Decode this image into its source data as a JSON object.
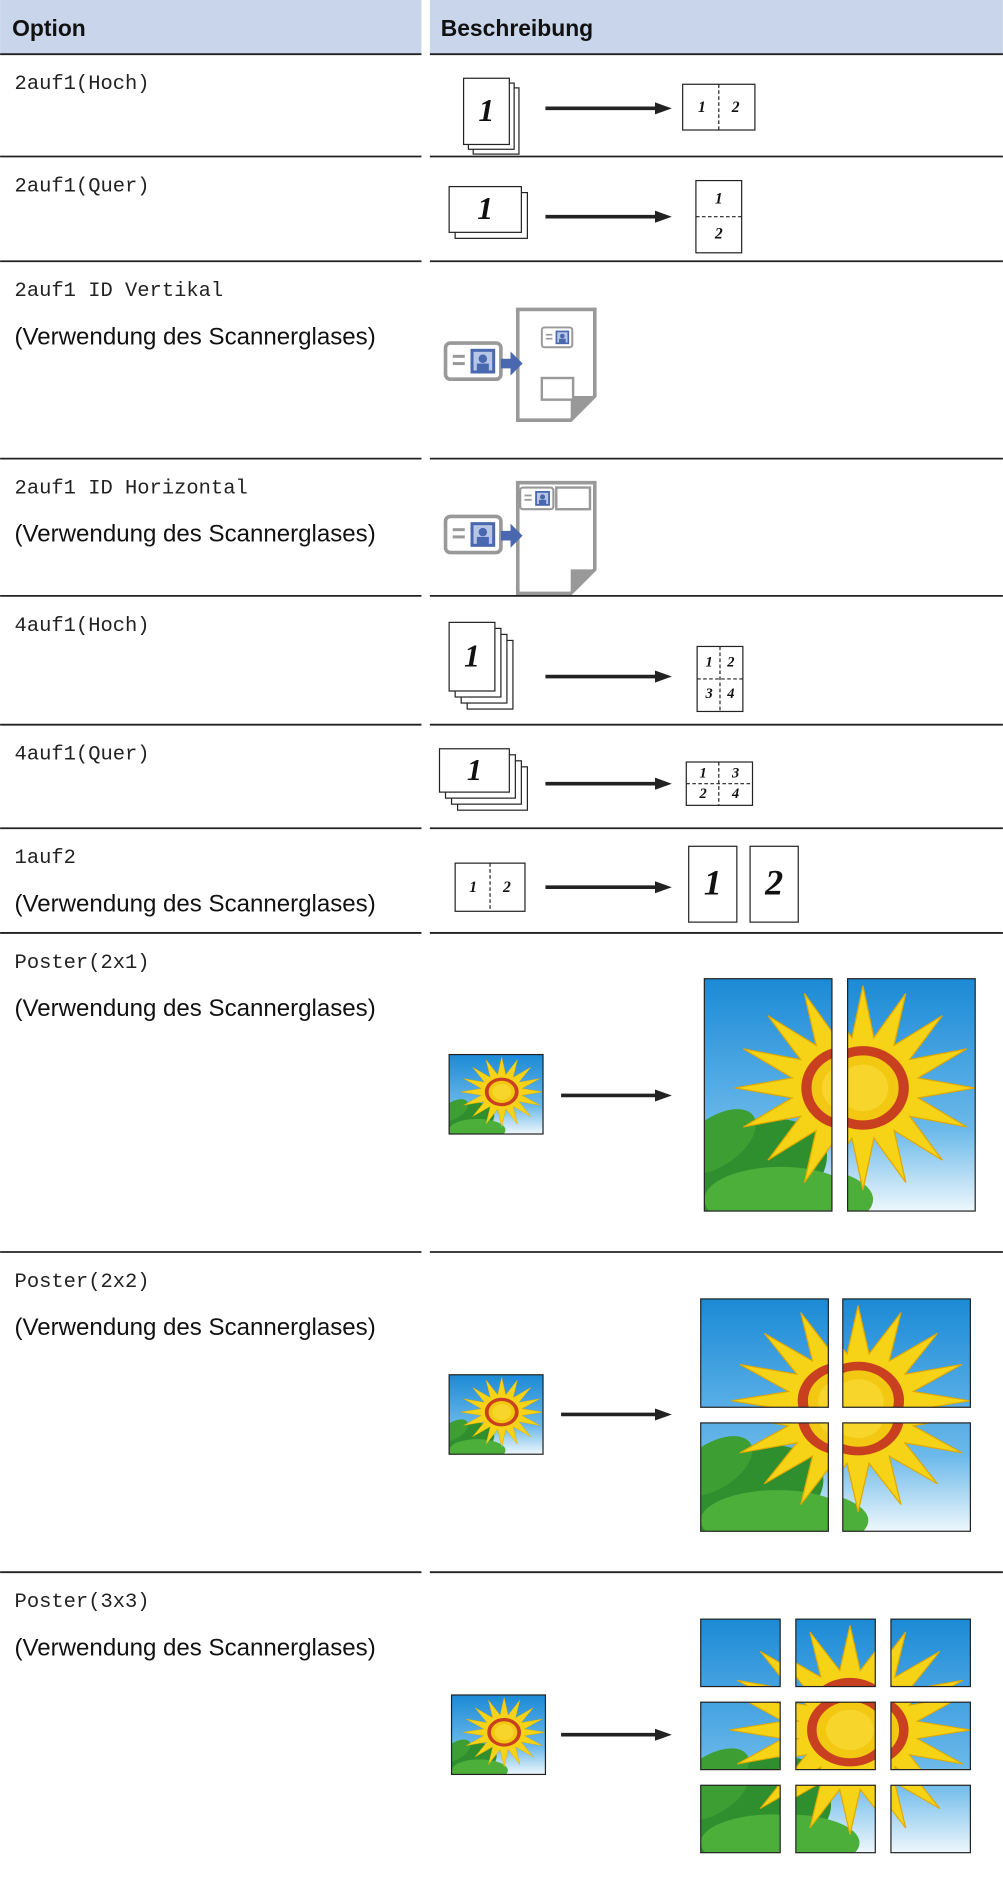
{
  "table": {
    "columns": [
      "Option",
      "Beschreibung"
    ],
    "rows": [
      {
        "option": "2auf1(Hoch)",
        "figure": {
          "source": [
            "1"
          ],
          "target": [
            "1",
            "2"
          ]
        }
      },
      {
        "option": "2auf1(Quer)",
        "figure": {
          "source": [
            "1"
          ],
          "target": [
            "1",
            "2"
          ]
        }
      },
      {
        "option": "2auf1 ID Vertikal",
        "note": "(Verwendung des Scannerglases)"
      },
      {
        "option": "2auf1 ID Horizontal",
        "note": "(Verwendung des Scannerglases)"
      },
      {
        "option": "4auf1(Hoch)",
        "figure": {
          "source": [
            "1"
          ],
          "target": [
            "1",
            "2",
            "3",
            "4"
          ]
        }
      },
      {
        "option": "4auf1(Quer)",
        "figure": {
          "source": [
            "1"
          ],
          "target": [
            "1",
            "3",
            "2",
            "4"
          ]
        }
      },
      {
        "option": "1auf2",
        "note": "(Verwendung des Scannerglases)",
        "figure": {
          "source": [
            "1",
            "2"
          ],
          "target": [
            "1",
            "2"
          ]
        }
      },
      {
        "option": "Poster(2x1)",
        "note": "(Verwendung des Scannerglases)"
      },
      {
        "option": "Poster(2x2)",
        "note": "(Verwendung des Scannerglases)"
      },
      {
        "option": "Poster(3x3)",
        "note": "(Verwendung des Scannerglases)"
      }
    ]
  }
}
